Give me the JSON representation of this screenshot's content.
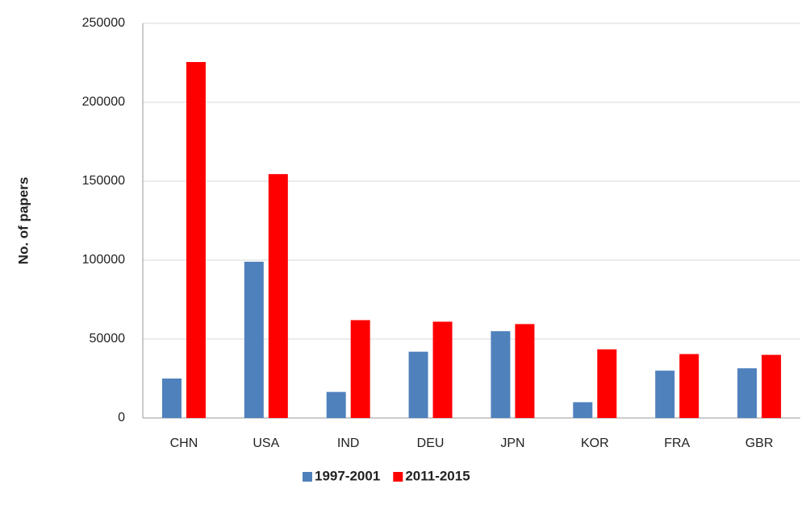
{
  "chart_data": {
    "type": "bar",
    "y_label": "No. of papers",
    "categories": [
      "CHN",
      "USA",
      "IND",
      "DEU",
      "JPN",
      "KOR",
      "FRA",
      "GBR"
    ],
    "series": [
      {
        "name": "1997-2001",
        "color": "#4f81bd",
        "values": [
          25000,
          99000,
          16500,
          42000,
          55000,
          10000,
          30000,
          31500
        ]
      },
      {
        "name": "2011-2015",
        "color": "#ff0000",
        "values": [
          225500,
          154500,
          62000,
          61000,
          59500,
          43500,
          40500,
          40000
        ]
      }
    ],
    "ylim": [
      0,
      250000
    ],
    "yticks": [
      0,
      50000,
      100000,
      150000,
      200000,
      250000
    ],
    "grid": true,
    "legend": "bottom"
  }
}
